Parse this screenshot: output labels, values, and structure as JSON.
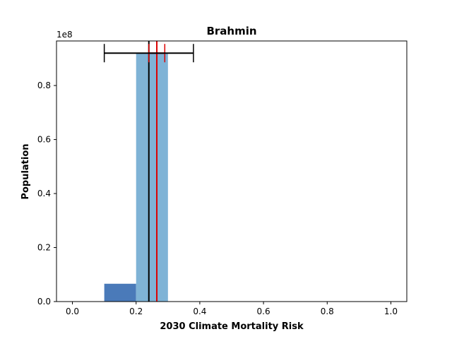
{
  "chart_data": {
    "type": "bar",
    "title": "Brahmin",
    "xlabel": "2030 Climate Mortality Risk",
    "ylabel": "Population",
    "y_offset_label": "1e8",
    "xlim": [
      -0.05,
      1.05
    ],
    "ylim": [
      0,
      0.965
    ],
    "x_ticks": [
      0.0,
      0.2,
      0.4,
      0.6,
      0.8,
      1.0
    ],
    "x_tick_labels": [
      "0.0",
      "0.2",
      "0.4",
      "0.6",
      "0.8",
      "1.0"
    ],
    "y_ticks": [
      0.0,
      0.2,
      0.4,
      0.6,
      0.8
    ],
    "y_tick_labels": [
      "0.0",
      "0.2",
      "0.4",
      "0.6",
      "0.8"
    ],
    "bars": [
      {
        "x0": 0.1,
        "x1": 0.2,
        "value": 0.066,
        "color": "#4a7ab9"
      },
      {
        "x0": 0.2,
        "x1": 0.3,
        "value": 0.92,
        "color": "#7fb3d6"
      }
    ],
    "error_bar": {
      "center": 0.24,
      "low": 0.1,
      "high": 0.38,
      "y": 0.92,
      "color": "#000000"
    },
    "red_interval": {
      "center": 0.265,
      "low": 0.24,
      "high": 0.29,
      "y": 0.92,
      "color": "#dd0000"
    },
    "vertical_lines": [
      {
        "x": 0.24,
        "color": "#000000"
      },
      {
        "x": 0.265,
        "color": "#dd0000"
      }
    ],
    "grid": false,
    "legend": "none"
  }
}
